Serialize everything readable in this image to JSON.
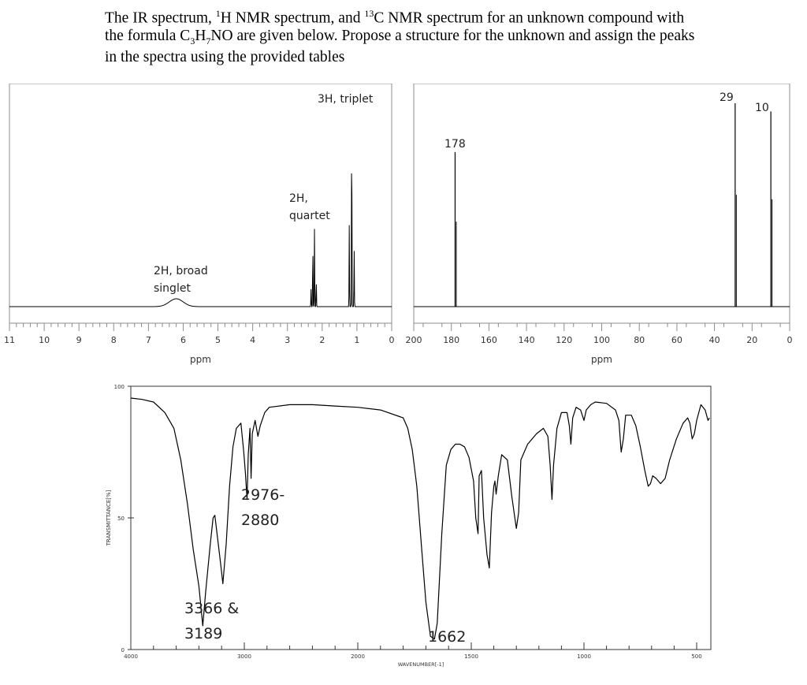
{
  "question": {
    "line1_a": "The IR spectrum, ",
    "line1_sup1": "1",
    "line1_b": "H NMR spectrum, and ",
    "line1_sup2": "13",
    "line1_c": "C NMR spectrum for an unknown compound with",
    "line2_a": "the formula C",
    "line2_sub1": "3",
    "line2_b": "H",
    "line2_sub2": "7",
    "line2_c": "NO are given below. Propose a structure for the unknown and assign the peaks",
    "line3": "in the spectra using the provided tables"
  },
  "chart_data": [
    {
      "type": "line",
      "spectrum": "1H NMR",
      "xlabel": "ppm",
      "xlim": [
        11,
        0
      ],
      "x_reversed": true,
      "ticks": [
        "11",
        "10",
        "9",
        "8",
        "7",
        "6",
        "5",
        "4",
        "3",
        "2",
        "1",
        "0"
      ],
      "peaks": [
        {
          "ppm": 6.2,
          "intensity": 0.04,
          "shape": "broad"
        },
        {
          "ppm": 2.32,
          "intensity": 0.09
        },
        {
          "ppm": 2.27,
          "intensity": 0.33
        },
        {
          "ppm": 2.22,
          "intensity": 0.42
        },
        {
          "ppm": 2.17,
          "intensity": 0.13
        },
        {
          "ppm": 1.22,
          "intensity": 0.42
        },
        {
          "ppm": 1.15,
          "intensity": 1.0
        },
        {
          "ppm": 1.08,
          "intensity": 0.3
        }
      ],
      "annotations": [
        {
          "ppm": 6.2,
          "lines": [
            "2H, broad",
            "singlet"
          ]
        },
        {
          "ppm": 2.25,
          "lines": [
            "2H,",
            "quartet"
          ]
        },
        {
          "ppm": 1.15,
          "lines": [
            "3H, triplet"
          ]
        }
      ]
    },
    {
      "type": "line",
      "spectrum": "13C NMR",
      "xlabel": "ppm",
      "xlim": [
        200,
        0
      ],
      "x_reversed": true,
      "ticks": [
        "200",
        "180",
        "160",
        "140",
        "120",
        "100",
        "80",
        "60",
        "40",
        "20",
        "0"
      ],
      "peaks": [
        {
          "ppm": 178,
          "intensity": 0.76,
          "label": "178"
        },
        {
          "ppm": 29,
          "intensity": 1.0,
          "label": "29"
        },
        {
          "ppm": 10,
          "intensity": 0.96,
          "label": "10"
        }
      ]
    },
    {
      "type": "line",
      "spectrum": "IR",
      "xlabel": "WAVENUMBER[-1]",
      "ylabel": "TRANSMITTANCE[%]",
      "xlim": [
        4000,
        400
      ],
      "ylim": [
        0,
        100
      ],
      "x_ticks": [
        "4000",
        "3000",
        "2000",
        "1500",
        "1000",
        "500"
      ],
      "y_ticks": [
        "100",
        "50",
        "0"
      ],
      "points": [
        [
          4000,
          95.5
        ],
        [
          3900,
          95
        ],
        [
          3800,
          94
        ],
        [
          3700,
          90
        ],
        [
          3620,
          84
        ],
        [
          3560,
          72
        ],
        [
          3500,
          55
        ],
        [
          3450,
          38
        ],
        [
          3400,
          24
        ],
        [
          3366,
          9
        ],
        [
          3340,
          22
        ],
        [
          3300,
          40
        ],
        [
          3275,
          50
        ],
        [
          3260,
          51
        ],
        [
          3240,
          44
        ],
        [
          3210,
          33
        ],
        [
          3189,
          25
        ],
        [
          3160,
          40
        ],
        [
          3130,
          62
        ],
        [
          3100,
          77
        ],
        [
          3070,
          84
        ],
        [
          3030,
          86
        ],
        [
          3005,
          75
        ],
        [
          2990,
          67
        ],
        [
          2976,
          57
        ],
        [
          2965,
          74
        ],
        [
          2950,
          84
        ],
        [
          2940,
          65
        ],
        [
          2930,
          82
        ],
        [
          2905,
          87
        ],
        [
          2880,
          81
        ],
        [
          2860,
          85
        ],
        [
          2820,
          90
        ],
        [
          2780,
          92
        ],
        [
          2600,
          93
        ],
        [
          2400,
          93
        ],
        [
          2200,
          92.5
        ],
        [
          2000,
          92
        ],
        [
          1900,
          91
        ],
        [
          1800,
          88
        ],
        [
          1780,
          84
        ],
        [
          1760,
          76
        ],
        [
          1740,
          62
        ],
        [
          1720,
          40
        ],
        [
          1700,
          18
        ],
        [
          1680,
          5
        ],
        [
          1662,
          4
        ],
        [
          1650,
          10
        ],
        [
          1630,
          44
        ],
        [
          1610,
          70
        ],
        [
          1590,
          76
        ],
        [
          1570,
          78
        ],
        [
          1550,
          78
        ],
        [
          1530,
          77
        ],
        [
          1510,
          73
        ],
        [
          1490,
          64
        ],
        [
          1480,
          50
        ],
        [
          1470,
          44
        ],
        [
          1465,
          66
        ],
        [
          1455,
          68
        ],
        [
          1445,
          50
        ],
        [
          1430,
          36
        ],
        [
          1420,
          31
        ],
        [
          1410,
          52
        ],
        [
          1400,
          62
        ],
        [
          1395,
          64
        ],
        [
          1390,
          59
        ],
        [
          1380,
          66
        ],
        [
          1365,
          74
        ],
        [
          1340,
          72
        ],
        [
          1320,
          58
        ],
        [
          1300,
          46
        ],
        [
          1290,
          52
        ],
        [
          1280,
          72
        ],
        [
          1250,
          78
        ],
        [
          1210,
          82
        ],
        [
          1180,
          84
        ],
        [
          1160,
          81
        ],
        [
          1150,
          70
        ],
        [
          1142,
          57
        ],
        [
          1135,
          70
        ],
        [
          1120,
          84
        ],
        [
          1100,
          90
        ],
        [
          1075,
          90
        ],
        [
          1065,
          85
        ],
        [
          1058,
          78
        ],
        [
          1050,
          88
        ],
        [
          1035,
          92
        ],
        [
          1015,
          91
        ],
        [
          1000,
          87
        ],
        [
          990,
          91
        ],
        [
          970,
          93
        ],
        [
          950,
          94
        ],
        [
          900,
          93.5
        ],
        [
          860,
          91
        ],
        [
          845,
          87
        ],
        [
          835,
          75
        ],
        [
          825,
          80
        ],
        [
          815,
          89
        ],
        [
          790,
          89
        ],
        [
          770,
          85
        ],
        [
          750,
          77
        ],
        [
          730,
          68
        ],
        [
          715,
          62
        ],
        [
          705,
          63
        ],
        [
          695,
          66
        ],
        [
          680,
          65
        ],
        [
          660,
          63
        ],
        [
          640,
          65
        ],
        [
          620,
          72
        ],
        [
          590,
          80
        ],
        [
          560,
          86
        ],
        [
          540,
          88
        ],
        [
          530,
          86
        ],
        [
          520,
          80
        ],
        [
          510,
          82
        ],
        [
          500,
          87
        ],
        [
          470,
          93
        ],
        [
          440,
          91
        ],
        [
          420,
          87
        ],
        [
          410,
          88
        ]
      ],
      "annotations": [
        {
          "x": 2976,
          "lines": [
            "2976-",
            "2880"
          ]
        },
        {
          "x": 3366,
          "lines": [
            "3366 &",
            "3189"
          ]
        },
        {
          "x": 1662,
          "lines": [
            "1662"
          ]
        }
      ]
    }
  ]
}
